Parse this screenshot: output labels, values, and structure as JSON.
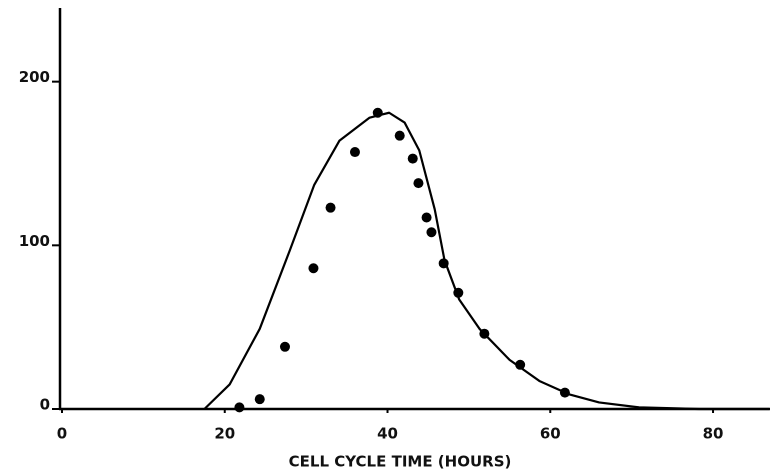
{
  "chart_data": {
    "type": "scatter",
    "x_label": "CELL CYCLE TIME (HOURS)",
    "xlim": [
      0,
      87
    ],
    "xticks": [
      0,
      20,
      40,
      60,
      80
    ],
    "ylim": [
      0,
      245
    ],
    "yticks": [
      0,
      100,
      200
    ],
    "series": [
      {
        "type": "scatter",
        "color": "#000000",
        "x": [
          21.8,
          24.3,
          27.4,
          30.9,
          33.0,
          36.0,
          38.8,
          41.5,
          43.1,
          43.8,
          44.8,
          45.4,
          46.9,
          48.7,
          51.9,
          56.3,
          61.8
        ],
        "values": [
          1,
          6,
          38,
          86,
          123,
          157,
          181,
          167,
          153,
          138,
          117,
          108,
          89,
          71,
          46,
          27,
          10
        ]
      },
      {
        "type": "line",
        "color": "#000000",
        "x": [
          17.5,
          20.6,
          24.3,
          28.0,
          31.0,
          34.1,
          37.8,
          40.2,
          42.1,
          43.9,
          45.8,
          47.0,
          48.8,
          51.3,
          55.0,
          58.7,
          62.3,
          66.0,
          70.9,
          78.3,
          86.9
        ],
        "values": [
          0,
          15,
          49,
          97,
          137,
          164,
          178,
          181,
          175,
          158,
          122,
          91,
          67,
          49,
          30,
          17,
          9,
          4,
          1,
          0,
          0
        ]
      }
    ]
  }
}
